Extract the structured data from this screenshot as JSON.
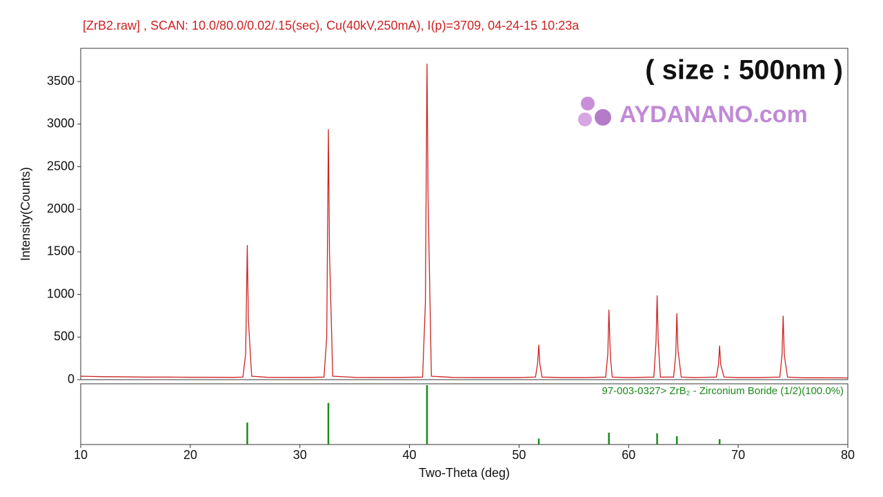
{
  "chart_data": [
    {
      "type": "line",
      "title": "[ZrB2.raw] , SCAN: 10.0/80.0/0.02/.15(sec), Cu(40kV,250mA), I(p)=3709, 04-24-15 10:23a",
      "ylabel": "Intensity(Counts)",
      "annotations": [
        "( size : 500nm )",
        "AYDANANO.com"
      ],
      "color": "#cc2222",
      "x": [
        10,
        12,
        14,
        16,
        18,
        20,
        22,
        24,
        24.8,
        25.05,
        25.2,
        25.3,
        25.6,
        27,
        29,
        31,
        32.2,
        32.45,
        32.6,
        32.7,
        33.0,
        35,
        37,
        39,
        41.2,
        41.45,
        41.6,
        41.7,
        42.0,
        44,
        46,
        48,
        50,
        51.5,
        51.7,
        51.8,
        51.9,
        52.1,
        54,
        56,
        57.9,
        58.1,
        58.2,
        58.3,
        58.35,
        58.5,
        60,
        62.3,
        62.5,
        62.6,
        62.7,
        62.9,
        64.1,
        64.3,
        64.4,
        64.5,
        64.8,
        66,
        68.0,
        68.2,
        68.3,
        68.4,
        68.7,
        70,
        72,
        73.8,
        74.0,
        74.1,
        74.2,
        74.3,
        74.5,
        76,
        78,
        80
      ],
      "values": [
        40,
        35,
        33,
        30,
        30,
        28,
        28,
        27,
        30,
        300,
        1580,
        700,
        40,
        28,
        27,
        27,
        30,
        500,
        2940,
        1500,
        40,
        27,
        26,
        26,
        30,
        900,
        3709,
        2100,
        40,
        26,
        25,
        25,
        25,
        30,
        200,
        410,
        180,
        30,
        25,
        25,
        30,
        300,
        820,
        400,
        250,
        30,
        25,
        30,
        450,
        990,
        450,
        30,
        30,
        300,
        780,
        350,
        30,
        25,
        30,
        180,
        400,
        180,
        30,
        25,
        25,
        30,
        300,
        750,
        300,
        200,
        30,
        22,
        22,
        20
      ],
      "xlim": [
        10,
        80
      ],
      "ylim": [
        0,
        3890
      ],
      "yticks": [
        0,
        500,
        1000,
        1500,
        2000,
        2500,
        3000,
        3500
      ]
    },
    {
      "type": "stem",
      "series": [
        {
          "name": "97-003-0327> ZrB₂ - Zirconium Boride (1/2)(100.0%)",
          "color": "#1a8a1a",
          "x": [
            25.2,
            32.6,
            41.6,
            51.8,
            58.2,
            62.6,
            64.4,
            68.3
          ],
          "values": [
            37,
            70,
            100,
            10,
            20,
            19,
            14,
            9
          ]
        }
      ],
      "xlim": [
        10,
        80
      ],
      "ylim": [
        0,
        100
      ],
      "xticks": [
        10,
        20,
        30,
        40,
        50,
        60,
        70,
        80
      ],
      "xlabel": "Two-Theta (deg)"
    }
  ]
}
